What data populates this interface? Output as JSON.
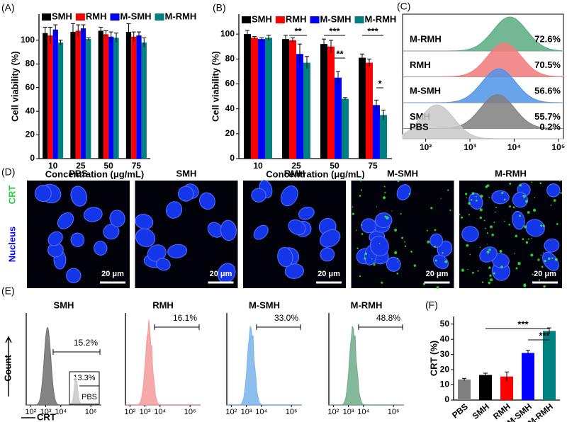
{
  "chart_data": [
    {
      "type": "bar",
      "panel_label": "(A)",
      "x_label": "Concentration (μg/mL)",
      "y_label": "Cell viability (%)",
      "categories": [
        "10",
        "25",
        "50",
        "75"
      ],
      "series": [
        {
          "name": "SMH",
          "color": "#000000",
          "values": [
            106,
            107,
            108,
            107
          ],
          "errors": [
            5,
            7,
            3,
            7
          ]
        },
        {
          "name": "RMH",
          "color": "#ff0000",
          "values": [
            104,
            108,
            105,
            103
          ],
          "errors": [
            7,
            5,
            3,
            4
          ]
        },
        {
          "name": "M-SMH",
          "color": "#0000ff",
          "values": [
            109,
            110,
            103,
            104
          ],
          "errors": [
            4,
            3,
            4,
            3
          ]
        },
        {
          "name": "M-RMH",
          "color": "#008080",
          "values": [
            98,
            101,
            102,
            98
          ],
          "errors": [
            2,
            1,
            4,
            4
          ]
        }
      ],
      "ylim": [
        0,
        122
      ],
      "yticks": [
        0,
        20,
        40,
        60,
        80,
        100
      ]
    },
    {
      "type": "bar",
      "panel_label": "(B)",
      "x_label": "Concentration (μg/mL)",
      "y_label": "Cell viability (%)",
      "categories": [
        "10",
        "25",
        "50",
        "75"
      ],
      "series": [
        {
          "name": "SMH",
          "color": "#000000",
          "values": [
            100,
            96,
            92,
            81
          ],
          "errors": [
            3,
            3,
            4,
            3
          ]
        },
        {
          "name": "RMH",
          "color": "#ff0000",
          "values": [
            97,
            95,
            90,
            77
          ],
          "errors": [
            1,
            2,
            5,
            3
          ]
        },
        {
          "name": "M-SMH",
          "color": "#0000ff",
          "values": [
            96,
            84,
            65,
            43
          ],
          "errors": [
            1,
            8,
            5,
            4
          ]
        },
        {
          "name": "M-RMH",
          "color": "#008080",
          "values": [
            97,
            77,
            48,
            35
          ],
          "errors": [
            2,
            5,
            1,
            4
          ]
        }
      ],
      "ylim": [
        0,
        116
      ],
      "yticks": [
        0,
        20,
        40,
        60,
        80,
        100
      ],
      "annotations": [
        "**",
        "***",
        "**",
        "***",
        "*"
      ]
    },
    {
      "type": "histogram-overlay",
      "panel_label": "(C)",
      "series": [
        {
          "name": "M-RMH",
          "label": "72.6%",
          "color": "#5aab82",
          "peak": 8000
        },
        {
          "name": "RMH",
          "label": "70.5%",
          "color": "#f27a7a",
          "peak": 6000
        },
        {
          "name": "M-SMH",
          "label": "56.6%",
          "color": "#4f93e6",
          "peak": 4500
        },
        {
          "name": "SMH",
          "label": "55.7%",
          "color": "#7f7f7f",
          "peak": 4200
        },
        {
          "name": "PBS",
          "label": "0.2%",
          "color": "#c8c8c8",
          "peak": 180
        }
      ],
      "xscale": "log",
      "xlim": [
        30,
        130000
      ],
      "xticks": [
        {
          "value": 100,
          "label": "10²"
        },
        {
          "value": 1000,
          "label": "10³"
        },
        {
          "value": 10000,
          "label": "10⁴"
        },
        {
          "value": 100000,
          "label": "10⁵"
        }
      ]
    },
    {
      "type": "image-grid",
      "panel_label": "(D)",
      "titles": [
        "PBS",
        "SMH",
        "RMH",
        "M-SMH",
        "M-RMH"
      ],
      "channel_labels": [
        "CRT",
        "Nucleus"
      ],
      "channel_colors": [
        "#2ecc40",
        "#0000ff"
      ],
      "scale_bar": "20 μm"
    },
    {
      "type": "histogram-panels",
      "panel_label": "(E)",
      "x_label": "CRT",
      "y_label": "Count",
      "series": [
        {
          "name": "SMH",
          "label": "15.2%",
          "color": "#6e6e6e",
          "peak": 1300
        },
        {
          "name": "RMH",
          "label": "16.1%",
          "color": "#f59a9a",
          "peak": 1800
        },
        {
          "name": "M-SMH",
          "label": "33.0%",
          "color": "#7ab3ea",
          "peak": 2000
        },
        {
          "name": "M-RMH",
          "label": "48.8%",
          "color": "#6fab8a",
          "peak": 2000
        }
      ],
      "inset": {
        "name": "PBS",
        "label": "13.3%",
        "color": "#cfcfcf",
        "peak": 1500
      },
      "xscale": "log",
      "xlim": [
        50,
        5000000
      ],
      "xticks": [
        {
          "value": 100,
          "label": "10²"
        },
        {
          "value": 1000,
          "label": "10³"
        },
        {
          "value": 10000,
          "label": "10⁴"
        },
        {
          "value": 1000000,
          "label": "10⁶"
        }
      ]
    },
    {
      "type": "bar",
      "panel_label": "(F)",
      "y_label": "CRT (%)",
      "categories": [
        "PBS",
        "SMH",
        "RMH",
        "M-SMH",
        "M-RMH"
      ],
      "values": [
        13.5,
        16.5,
        15.5,
        31,
        45.5
      ],
      "errors": [
        0.8,
        1.2,
        3,
        1.8,
        2
      ],
      "colors": [
        "#808080",
        "#000000",
        "#ff0000",
        "#0000ff",
        "#008080"
      ],
      "ylim": [
        0,
        55
      ],
      "yticks": [
        0,
        10,
        20,
        30,
        40,
        50
      ],
      "annotations": [
        "***",
        "***"
      ]
    }
  ]
}
